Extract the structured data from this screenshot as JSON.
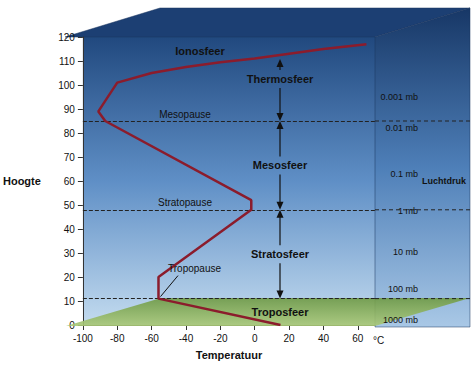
{
  "chart_data": {
    "type": "line",
    "x": [
      15,
      -56,
      -56,
      -2,
      -2,
      -87,
      -91,
      -80,
      -60,
      -40,
      -20,
      0,
      20,
      40,
      65
    ],
    "values": [
      0,
      11,
      20,
      48,
      52,
      85,
      89,
      101,
      105,
      107.5,
      109.5,
      111,
      113,
      115,
      117
    ],
    "color": "#8b1c2c",
    "xlim": [
      -100,
      70
    ],
    "xticks": [
      -100,
      -80,
      -60,
      -40,
      -20,
      0,
      20,
      40,
      60
    ],
    "ylim": [
      0,
      120
    ],
    "yticks": [
      0,
      10,
      20,
      30,
      40,
      50,
      60,
      70,
      80,
      90,
      100,
      110,
      120
    ],
    "xlabel": "Temperatuur",
    "xunit": "°C",
    "ylabel": "Hoogte",
    "grid": false,
    "layers": [
      "Troposfeer",
      "Stratosfeer",
      "Mesosfeer",
      "Thermosfeer"
    ],
    "boundaries": [
      {
        "name": "Tropopause",
        "height": 11
      },
      {
        "name": "Stratopause",
        "height": 48
      },
      {
        "name": "Mesopause",
        "height": 85
      }
    ],
    "top_layer": "Ionosfeer",
    "pressure_title": "Luchtdruk",
    "pressure_labels": [
      {
        "label": "1000 mb",
        "height": 2
      },
      {
        "label": "100 mb",
        "height": 15
      },
      {
        "label": "10 mb",
        "height": 30.5
      },
      {
        "label": "1 mb",
        "height": 47.5
      },
      {
        "label": "0.1 mb",
        "height": 63
      },
      {
        "label": "0.01 mb",
        "height": 82
      },
      {
        "label": "0.001 mb",
        "height": 95
      }
    ]
  }
}
